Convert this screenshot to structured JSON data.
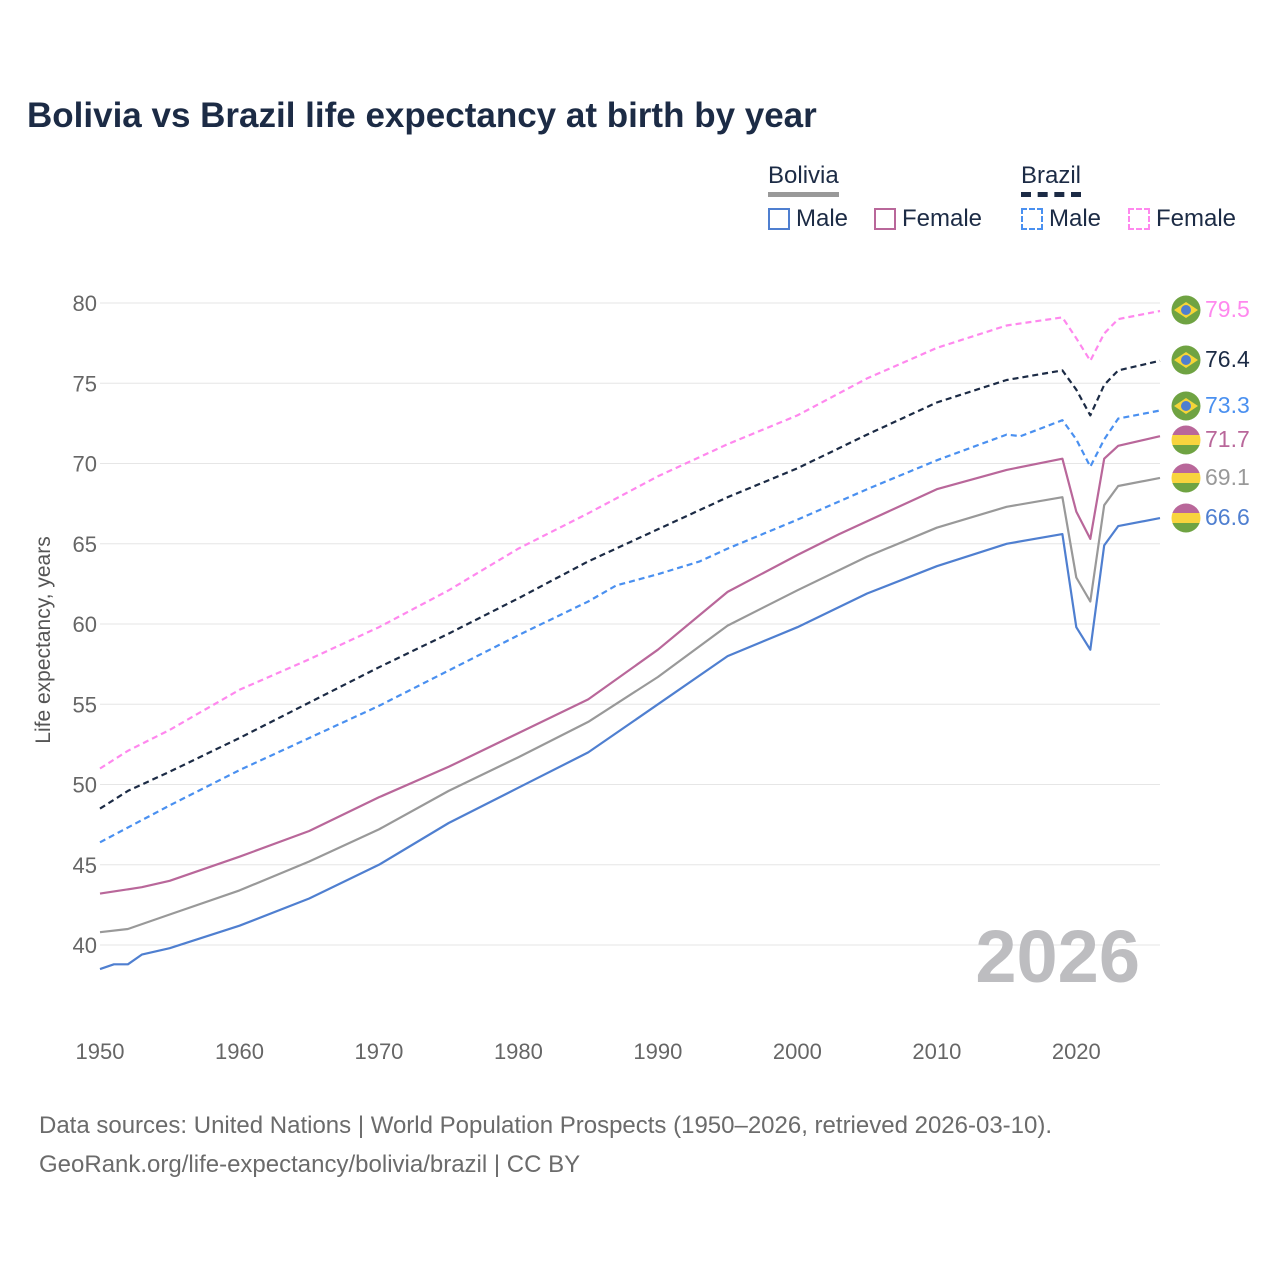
{
  "chart_data": {
    "type": "line",
    "title": "Bolivia vs Brazil life expectancy at birth by year",
    "xlabel": "",
    "ylabel": "Life expectancy, years",
    "xlim": [
      1950,
      2026
    ],
    "ylim": [
      37,
      81
    ],
    "x_ticks": [
      "1950",
      "1960",
      "1970",
      "1980",
      "1990",
      "2000",
      "2010",
      "2020"
    ],
    "y_ticks": [
      "40",
      "45",
      "50",
      "55",
      "60",
      "65",
      "70",
      "75",
      "80"
    ],
    "grid": true,
    "year_watermark": "2026",
    "legend": {
      "placement": "top-right",
      "groups": [
        {
          "name": "Bolivia",
          "style": "solid",
          "color": "#999999",
          "items": [
            "Male",
            "Female"
          ]
        },
        {
          "name": "Brazil",
          "style": "dashed",
          "color": "#1c2b45",
          "items": [
            "Male",
            "Female"
          ]
        }
      ]
    },
    "series": [
      {
        "name": "Brazil Female",
        "country": "Brazil",
        "dashed": true,
        "color": "#ff88ee",
        "end_label": "79.5",
        "points": [
          [
            1950,
            51.0
          ],
          [
            1952,
            52.1
          ],
          [
            1955,
            53.4
          ],
          [
            1960,
            55.9
          ],
          [
            1965,
            57.8
          ],
          [
            1970,
            59.8
          ],
          [
            1975,
            62.1
          ],
          [
            1980,
            64.7
          ],
          [
            1985,
            66.9
          ],
          [
            1990,
            69.2
          ],
          [
            1995,
            71.2
          ],
          [
            2000,
            73.0
          ],
          [
            2005,
            75.3
          ],
          [
            2010,
            77.2
          ],
          [
            2015,
            78.6
          ],
          [
            2019,
            79.1
          ],
          [
            2020,
            77.8
          ],
          [
            2021,
            76.4
          ],
          [
            2022,
            78.1
          ],
          [
            2023,
            79.0
          ],
          [
            2026,
            79.5
          ]
        ]
      },
      {
        "name": "Brazil",
        "country": "Brazil",
        "dashed": true,
        "color": "#1c2b45",
        "end_label": "76.4",
        "points": [
          [
            1950,
            48.5
          ],
          [
            1952,
            49.6
          ],
          [
            1955,
            50.8
          ],
          [
            1960,
            52.9
          ],
          [
            1965,
            55.1
          ],
          [
            1970,
            57.3
          ],
          [
            1975,
            59.4
          ],
          [
            1980,
            61.6
          ],
          [
            1985,
            63.9
          ],
          [
            1990,
            65.9
          ],
          [
            1995,
            67.9
          ],
          [
            2000,
            69.7
          ],
          [
            2005,
            71.8
          ],
          [
            2010,
            73.8
          ],
          [
            2015,
            75.2
          ],
          [
            2019,
            75.8
          ],
          [
            2020,
            74.6
          ],
          [
            2021,
            73.0
          ],
          [
            2022,
            74.9
          ],
          [
            2023,
            75.8
          ],
          [
            2026,
            76.4
          ]
        ]
      },
      {
        "name": "Brazil Male",
        "country": "Brazil",
        "dashed": true,
        "color": "#4a90f0",
        "end_label": "73.3",
        "points": [
          [
            1950,
            46.4
          ],
          [
            1955,
            48.7
          ],
          [
            1960,
            50.9
          ],
          [
            1965,
            52.9
          ],
          [
            1970,
            54.9
          ],
          [
            1975,
            57.1
          ],
          [
            1980,
            59.3
          ],
          [
            1985,
            61.4
          ],
          [
            1987,
            62.4
          ],
          [
            1990,
            63.1
          ],
          [
            1993,
            63.9
          ],
          [
            1995,
            64.7
          ],
          [
            2000,
            66.5
          ],
          [
            2005,
            68.4
          ],
          [
            2010,
            70.2
          ],
          [
            2015,
            71.8
          ],
          [
            2016,
            71.7
          ],
          [
            2019,
            72.7
          ],
          [
            2020,
            71.5
          ],
          [
            2021,
            69.8
          ],
          [
            2022,
            71.5
          ],
          [
            2023,
            72.8
          ],
          [
            2026,
            73.3
          ]
        ]
      },
      {
        "name": "Bolivia Female",
        "country": "Bolivia",
        "dashed": false,
        "color": "#b9679a",
        "end_label": "71.7",
        "points": [
          [
            1950,
            43.2
          ],
          [
            1953,
            43.6
          ],
          [
            1955,
            44.0
          ],
          [
            1960,
            45.5
          ],
          [
            1965,
            47.1
          ],
          [
            1970,
            49.2
          ],
          [
            1975,
            51.1
          ],
          [
            1980,
            53.2
          ],
          [
            1985,
            55.3
          ],
          [
            1990,
            58.4
          ],
          [
            1995,
            62.0
          ],
          [
            2000,
            64.3
          ],
          [
            2003,
            65.6
          ],
          [
            2005,
            66.4
          ],
          [
            2010,
            68.4
          ],
          [
            2015,
            69.6
          ],
          [
            2019,
            70.3
          ],
          [
            2020,
            67.0
          ],
          [
            2021,
            65.3
          ],
          [
            2022,
            70.3
          ],
          [
            2023,
            71.1
          ],
          [
            2026,
            71.7
          ]
        ]
      },
      {
        "name": "Bolivia",
        "country": "Bolivia",
        "dashed": false,
        "color": "#999999",
        "end_label": "69.1",
        "points": [
          [
            1950,
            40.8
          ],
          [
            1952,
            41.0
          ],
          [
            1955,
            41.9
          ],
          [
            1960,
            43.4
          ],
          [
            1965,
            45.2
          ],
          [
            1970,
            47.2
          ],
          [
            1975,
            49.6
          ],
          [
            1980,
            51.7
          ],
          [
            1985,
            53.9
          ],
          [
            1990,
            56.7
          ],
          [
            1995,
            59.9
          ],
          [
            2000,
            62.1
          ],
          [
            2005,
            64.2
          ],
          [
            2010,
            66.0
          ],
          [
            2015,
            67.3
          ],
          [
            2019,
            67.9
          ],
          [
            2020,
            62.9
          ],
          [
            2021,
            61.4
          ],
          [
            2022,
            67.4
          ],
          [
            2023,
            68.6
          ],
          [
            2026,
            69.1
          ]
        ]
      },
      {
        "name": "Bolivia Male",
        "country": "Bolivia",
        "dashed": false,
        "color": "#4f7fd0",
        "end_label": "66.6",
        "points": [
          [
            1950,
            38.5
          ],
          [
            1951,
            38.8
          ],
          [
            1952,
            38.8
          ],
          [
            1953,
            39.4
          ],
          [
            1955,
            39.8
          ],
          [
            1960,
            41.2
          ],
          [
            1965,
            42.9
          ],
          [
            1970,
            45.0
          ],
          [
            1975,
            47.6
          ],
          [
            1980,
            49.8
          ],
          [
            1985,
            52.0
          ],
          [
            1990,
            55.0
          ],
          [
            1995,
            58.0
          ],
          [
            2000,
            59.8
          ],
          [
            2005,
            61.9
          ],
          [
            2010,
            63.6
          ],
          [
            2015,
            65.0
          ],
          [
            2019,
            65.6
          ],
          [
            2020,
            59.8
          ],
          [
            2021,
            58.4
          ],
          [
            2022,
            64.9
          ],
          [
            2023,
            66.1
          ],
          [
            2026,
            66.6
          ]
        ]
      }
    ]
  },
  "legend_labels": {
    "bolivia": "Bolivia",
    "brazil": "Brazil",
    "male": "Male",
    "female": "Female"
  },
  "footer": {
    "line1": "Data sources: United Nations | World Population Prospects (1950–2026, retrieved 2026-03-10).",
    "line2": "GeoRank.org/life-expectancy/bolivia/brazil | CC BY"
  }
}
